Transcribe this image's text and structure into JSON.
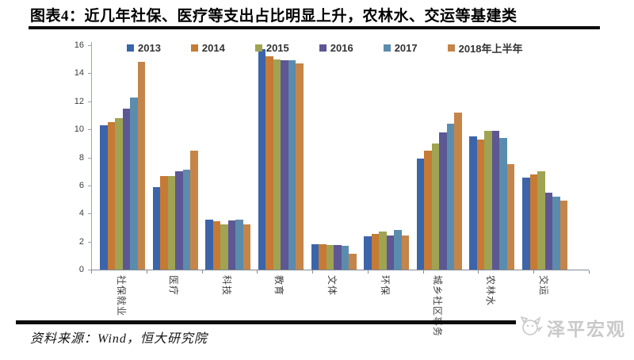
{
  "header": {
    "title": "图表4：近几年社保、医疗等支出占比明显上升，农林水、交运等基建类"
  },
  "chart_data": {
    "type": "bar",
    "title": "图表4：近几年社保、医疗等支出占比明显上升，农林水、交运等基建类",
    "categories": [
      "社保就业",
      "医疗",
      "科技",
      "教育",
      "文体",
      "环保",
      "城乡社区事务",
      "农林水",
      "交运"
    ],
    "series": [
      {
        "name": "2013",
        "color": "#3c64a8",
        "values": [
          10.3,
          5.9,
          3.55,
          15.7,
          1.8,
          2.4,
          7.9,
          9.5,
          6.55
        ]
      },
      {
        "name": "2014",
        "color": "#c67a35",
        "values": [
          10.5,
          6.7,
          3.45,
          15.2,
          1.8,
          2.55,
          8.5,
          9.3,
          6.8
        ]
      },
      {
        "name": "2015",
        "color": "#a0a352",
        "values": [
          10.8,
          6.7,
          3.2,
          15.0,
          1.75,
          2.7,
          9.0,
          9.9,
          7.0
        ]
      },
      {
        "name": "2016",
        "color": "#5d5793",
        "values": [
          11.5,
          7.0,
          3.5,
          14.95,
          1.75,
          2.45,
          9.8,
          9.9,
          5.5
        ]
      },
      {
        "name": "2017",
        "color": "#5c8cad",
        "values": [
          12.25,
          7.1,
          3.55,
          14.9,
          1.7,
          2.85,
          10.4,
          9.4,
          5.2
        ]
      },
      {
        "name": "2018年上半年",
        "color": "#c4854a",
        "values": [
          14.8,
          8.5,
          3.25,
          14.7,
          1.15,
          2.45,
          11.2,
          7.5,
          4.9
        ]
      }
    ],
    "ylim": [
      0,
      16
    ],
    "yticks": [
      0,
      2,
      4,
      6,
      8,
      10,
      12,
      14,
      16
    ],
    "grid": false,
    "legend_position": "top"
  },
  "footer": {
    "source": "资料来源：Wind，恒大研究院"
  },
  "watermark": {
    "text": "泽平宏观",
    "icon": "cat-face-icon",
    "color": "#c9c9c9"
  }
}
